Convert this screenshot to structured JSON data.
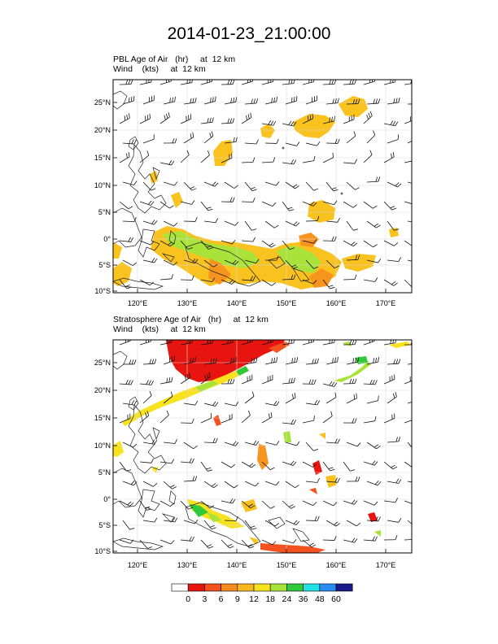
{
  "title": "2014-01-23_21:00:00",
  "panels": [
    {
      "id": "pbl",
      "field_label": "PBL Age of Air   (hr)     at  12 km",
      "wind_label": "Wind    (kts)     at  12 km",
      "lat_ticks": [
        "25°N",
        "20°N",
        "15°N",
        "10°N",
        "5°N",
        "0°",
        "5°S",
        "10°S"
      ],
      "lon_ticks": [
        "120°E",
        "130°E",
        "140°E",
        "150°E",
        "160°E",
        "170°E"
      ]
    },
    {
      "id": "strat",
      "field_label": "Stratosphere Age of Air   (hr)     at  12 km",
      "wind_label": "Wind    (kts)     at  12 km",
      "lat_ticks": [
        "25°N",
        "20°N",
        "15°N",
        "10°N",
        "5°N",
        "0°",
        "5°S",
        "10°S"
      ],
      "lon_ticks": [
        "120°E",
        "130°E",
        "140°E",
        "150°E",
        "160°E",
        "170°E"
      ]
    }
  ],
  "colorbar": {
    "labels": [
      "0",
      "3",
      "6",
      "9",
      "12",
      "18",
      "24",
      "36",
      "48",
      "60"
    ],
    "colors": [
      "#ffffff",
      "#e8140f",
      "#f4511e",
      "#f78a1e",
      "#f9b71e",
      "#f8e21e",
      "#a9e33a",
      "#2fc93a",
      "#1ee2e6",
      "#2a8cf0",
      "#1a1a8c"
    ]
  }
}
